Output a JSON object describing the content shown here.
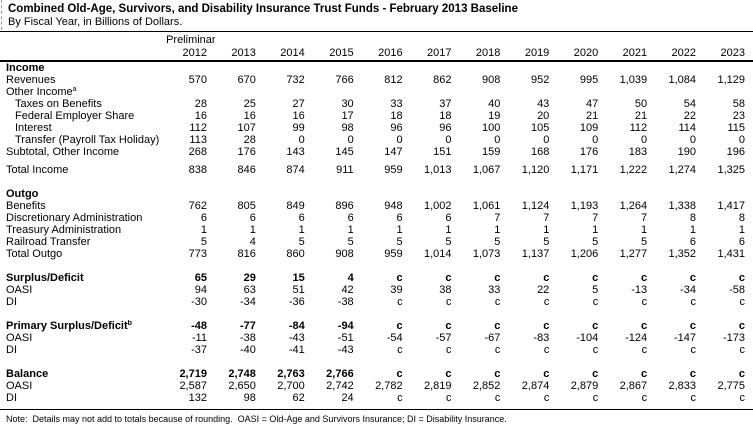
{
  "title": "Combined Old-Age, Survivors, and Disability Insurance Trust Funds - February 2013 Baseline",
  "subtitle": "By Fiscal Year, in Billions of Dollars.",
  "header": {
    "preliminary_label": "Preliminary",
    "years": [
      "2012",
      "2013",
      "2014",
      "2015",
      "2016",
      "2017",
      "2018",
      "2019",
      "2020",
      "2021",
      "2022",
      "2023"
    ]
  },
  "table": {
    "rows": [
      {
        "label": "Income",
        "bold": true,
        "values": []
      },
      {
        "label": "Revenues",
        "values": [
          "570",
          "670",
          "732",
          "766",
          "812",
          "862",
          "908",
          "952",
          "995",
          "1,039",
          "1,084",
          "1,129"
        ]
      },
      {
        "label": "Other Income",
        "sup": "a",
        "values": []
      },
      {
        "label": "Taxes on Benefits",
        "indent": true,
        "values": [
          "28",
          "25",
          "27",
          "30",
          "33",
          "37",
          "40",
          "43",
          "47",
          "50",
          "54",
          "58"
        ]
      },
      {
        "label": "Federal Employer Share",
        "indent": true,
        "values": [
          "16",
          "16",
          "16",
          "17",
          "18",
          "18",
          "19",
          "20",
          "21",
          "21",
          "22",
          "23"
        ]
      },
      {
        "label": "Interest",
        "indent": true,
        "values": [
          "112",
          "107",
          "99",
          "98",
          "96",
          "96",
          "100",
          "105",
          "109",
          "112",
          "114",
          "115"
        ]
      },
      {
        "label": "Transfer (Payroll Tax Holiday)",
        "indent": true,
        "underline": true,
        "values": [
          "113",
          "28",
          "0",
          "0",
          "0",
          "0",
          "0",
          "0",
          "0",
          "0",
          "0",
          "0"
        ]
      },
      {
        "label": "Subtotal, Other Income",
        "values": [
          "268",
          "176",
          "143",
          "145",
          "147",
          "151",
          "159",
          "168",
          "176",
          "183",
          "190",
          "196"
        ]
      },
      {
        "label": "Total Income",
        "gap_before": "small",
        "values": [
          "838",
          "846",
          "874",
          "911",
          "959",
          "1,013",
          "1,067",
          "1,120",
          "1,171",
          "1,222",
          "1,274",
          "1,325"
        ]
      },
      {
        "label": "Outgo",
        "bold": true,
        "gap_before": "normal",
        "values": []
      },
      {
        "label": "Benefits",
        "values": [
          "762",
          "805",
          "849",
          "896",
          "948",
          "1,002",
          "1,061",
          "1,124",
          "1,193",
          "1,264",
          "1,338",
          "1,417"
        ]
      },
      {
        "label": "Discretionary Administration",
        "values": [
          "6",
          "6",
          "6",
          "6",
          "6",
          "6",
          "7",
          "7",
          "7",
          "7",
          "8",
          "8"
        ]
      },
      {
        "label": "Treasury Administration",
        "values": [
          "1",
          "1",
          "1",
          "1",
          "1",
          "1",
          "1",
          "1",
          "1",
          "1",
          "1",
          "1"
        ]
      },
      {
        "label": "Railroad Transfer",
        "underline": true,
        "values": [
          "5",
          "4",
          "5",
          "5",
          "5",
          "5",
          "5",
          "5",
          "5",
          "5",
          "6",
          "6"
        ]
      },
      {
        "label": "Total Outgo",
        "values": [
          "773",
          "816",
          "860",
          "908",
          "959",
          "1,014",
          "1,073",
          "1,137",
          "1,206",
          "1,277",
          "1,352",
          "1,431"
        ]
      },
      {
        "label": "Surplus/Deficit",
        "bold": true,
        "gap_before": "normal",
        "values": [
          "65",
          "29",
          "15",
          "4",
          "c",
          "c",
          "c",
          "c",
          "c",
          "c",
          "c",
          "c"
        ]
      },
      {
        "label": "OASI",
        "values": [
          "94",
          "63",
          "51",
          "42",
          "39",
          "38",
          "33",
          "22",
          "5",
          "-13",
          "-34",
          "-58"
        ]
      },
      {
        "label": "DI",
        "values": [
          "-30",
          "-34",
          "-36",
          "-38",
          "c",
          "c",
          "c",
          "c",
          "c",
          "c",
          "c",
          "c"
        ]
      },
      {
        "label": "Primary Surplus/Deficit",
        "sup": "b",
        "bold": true,
        "gap_before": "normal",
        "values": [
          "-48",
          "-77",
          "-84",
          "-94",
          "c",
          "c",
          "c",
          "c",
          "c",
          "c",
          "c",
          "c"
        ]
      },
      {
        "label": "OASI",
        "values": [
          "-11",
          "-38",
          "-43",
          "-51",
          "-54",
          "-57",
          "-67",
          "-83",
          "-104",
          "-124",
          "-147",
          "-173"
        ]
      },
      {
        "label": "DI",
        "values": [
          "-37",
          "-40",
          "-41",
          "-43",
          "c",
          "c",
          "c",
          "c",
          "c",
          "c",
          "c",
          "c"
        ]
      },
      {
        "label": "Balance",
        "bold": true,
        "gap_before": "normal",
        "values": [
          "2,719",
          "2,748",
          "2,763",
          "2,766",
          "c",
          "c",
          "c",
          "c",
          "c",
          "c",
          "c",
          "c"
        ]
      },
      {
        "label": "OASI",
        "values": [
          "2,587",
          "2,650",
          "2,700",
          "2,742",
          "2,782",
          "2,819",
          "2,852",
          "2,874",
          "2,879",
          "2,867",
          "2,833",
          "2,775"
        ]
      },
      {
        "label": "DI",
        "values": [
          "132",
          "98",
          "62",
          "24",
          "c",
          "c",
          "c",
          "c",
          "c",
          "c",
          "c",
          "c"
        ]
      }
    ]
  },
  "note": "Note:  Details may not add to totals because of rounding.  OASI = Old-Age and Survivors Insurance; DI = Disability Insurance.",
  "colors": {
    "text": "#000000",
    "background": "#ffffff",
    "rule": "#000000"
  }
}
